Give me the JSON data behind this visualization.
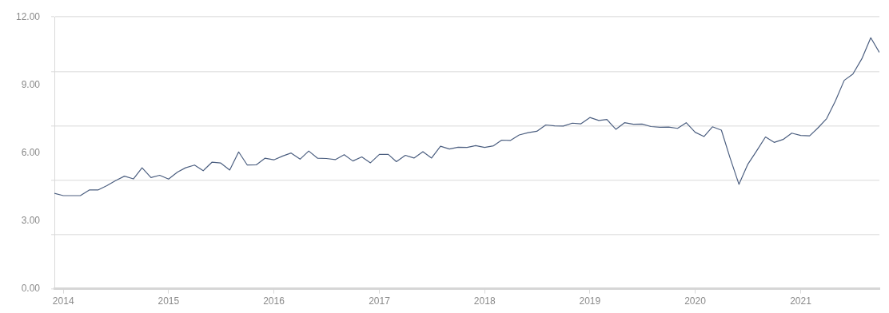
{
  "chart_data": {
    "type": "line",
    "x": [
      "2013-12",
      "2014-01",
      "2014-02",
      "2014-03",
      "2014-04",
      "2014-05",
      "2014-06",
      "2014-07",
      "2014-08",
      "2014-09",
      "2014-10",
      "2014-11",
      "2014-12",
      "2015-01",
      "2015-02",
      "2015-03",
      "2015-04",
      "2015-05",
      "2015-06",
      "2015-07",
      "2015-08",
      "2015-09",
      "2015-10",
      "2015-11",
      "2015-12",
      "2016-01",
      "2016-02",
      "2016-03",
      "2016-04",
      "2016-05",
      "2016-06",
      "2016-07",
      "2016-08",
      "2016-09",
      "2016-10",
      "2016-11",
      "2016-12",
      "2017-01",
      "2017-02",
      "2017-03",
      "2017-04",
      "2017-05",
      "2017-06",
      "2017-07",
      "2017-08",
      "2017-09",
      "2017-10",
      "2017-11",
      "2017-12",
      "2018-01",
      "2018-02",
      "2018-03",
      "2018-04",
      "2018-05",
      "2018-06",
      "2018-07",
      "2018-08",
      "2018-09",
      "2018-10",
      "2018-11",
      "2018-12",
      "2019-01",
      "2019-02",
      "2019-03",
      "2019-04",
      "2019-05",
      "2019-06",
      "2019-07",
      "2019-08",
      "2019-09",
      "2019-10",
      "2019-11",
      "2019-12",
      "2020-01",
      "2020-02",
      "2020-03",
      "2020-04",
      "2020-05",
      "2020-06",
      "2020-07",
      "2020-08",
      "2020-09",
      "2020-10",
      "2020-11",
      "2020-12",
      "2021-01",
      "2021-02",
      "2021-03",
      "2021-04",
      "2021-05",
      "2021-06",
      "2021-07",
      "2021-08",
      "2021-09",
      "2021-10"
    ],
    "series": [
      {
        "color": "#4c5f80",
        "values": [
          4.21,
          4.11,
          4.11,
          4.11,
          4.36,
          4.36,
          4.55,
          4.77,
          4.97,
          4.85,
          5.34,
          4.91,
          5.01,
          4.84,
          5.15,
          5.34,
          5.46,
          5.21,
          5.59,
          5.55,
          5.24,
          6.04,
          5.46,
          5.47,
          5.76,
          5.69,
          5.86,
          5.99,
          5.72,
          6.08,
          5.76,
          5.75,
          5.7,
          5.92,
          5.64,
          5.82,
          5.56,
          5.93,
          5.93,
          5.61,
          5.89,
          5.77,
          6.05,
          5.77,
          6.29,
          6.17,
          6.25,
          6.24,
          6.32,
          6.24,
          6.31,
          6.56,
          6.55,
          6.79,
          6.89,
          6.95,
          7.23,
          7.19,
          7.18,
          7.31,
          7.28,
          7.56,
          7.43,
          7.47,
          7.04,
          7.33,
          7.26,
          7.27,
          7.16,
          7.13,
          7.14,
          7.08,
          7.33,
          6.91,
          6.72,
          7.15,
          7.0,
          5.78,
          4.61,
          5.48,
          6.08,
          6.7,
          6.46,
          6.59,
          6.87,
          6.77,
          6.75,
          7.09,
          7.51,
          8.28,
          9.2,
          9.48,
          10.15,
          11.08,
          10.43
        ]
      }
    ],
    "xlim": [
      "2013-12",
      "2021-10"
    ],
    "xticks": [
      "2014",
      "2015",
      "2016",
      "2017",
      "2018",
      "2019",
      "2020",
      "2021"
    ],
    "ylim": [
      0,
      12
    ],
    "yticks": [
      {
        "value": 0,
        "label": "0.00"
      },
      {
        "value": 2.4,
        "label": null
      },
      {
        "value": 3,
        "label": "3.00"
      },
      {
        "value": 4.8,
        "label": null
      },
      {
        "value": 6,
        "label": "6.00"
      },
      {
        "value": 7.2,
        "label": null
      },
      {
        "value": 9,
        "label": "9.00"
      },
      {
        "value": 9.6,
        "label": null
      },
      {
        "value": 12,
        "label": "12.00"
      }
    ],
    "grid": "y",
    "marker": "none",
    "line_style": "solid",
    "legend": false
  }
}
